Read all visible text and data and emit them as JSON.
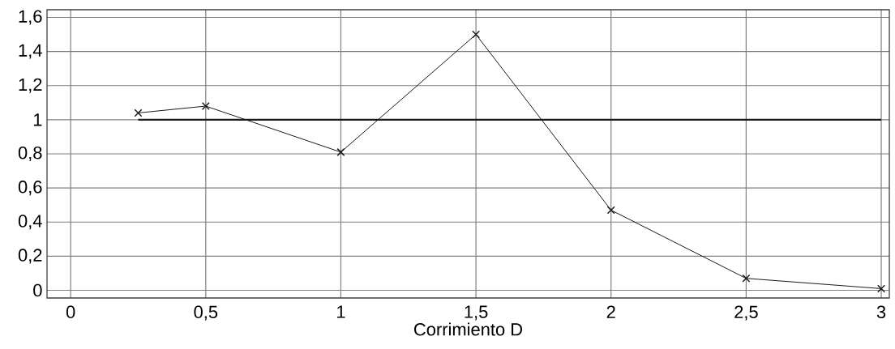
{
  "chart_data": {
    "type": "line",
    "xlabel": "Corrimiento D",
    "x": [
      0.25,
      0.5,
      1,
      1.5,
      2,
      2.5,
      3
    ],
    "series": [
      {
        "color": "#1a1a1a",
        "values": [
          1.04,
          1.08,
          0.81,
          1.5,
          0.47,
          0.07,
          0.01
        ]
      },
      {
        "color": "#1a1a1a",
        "x": [
          0.25,
          3
        ],
        "values": [
          1,
          1
        ],
        "marker": "none"
      }
    ],
    "xlim": [
      -0.0875,
      3.03
    ],
    "ylim": [
      -0.045,
      1.645
    ],
    "xticks": [
      0,
      {
        "value": 0.5,
        "label": "0,5"
      },
      1,
      {
        "value": 1.5,
        "label": "1,5"
      },
      2,
      {
        "value": 2.5,
        "label": "2,5"
      },
      3
    ],
    "yticks": [
      0,
      {
        "value": 0.2,
        "label": "0,2"
      },
      {
        "value": 0.4,
        "label": "0,4"
      },
      {
        "value": 0.6,
        "label": "0,6"
      },
      {
        "value": 0.8,
        "label": "0,8"
      },
      1,
      {
        "value": 1.2,
        "label": "1,2"
      },
      {
        "value": 1.4,
        "label": "1,4"
      },
      {
        "value": 1.6,
        "label": "1,6"
      }
    ],
    "grid": true,
    "marker": "cross",
    "line_style": "solid"
  }
}
